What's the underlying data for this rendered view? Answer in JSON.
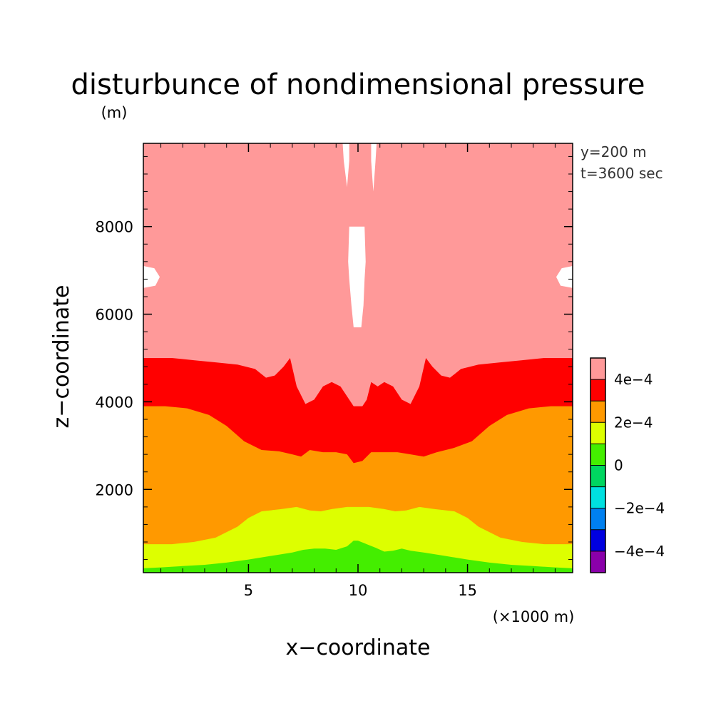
{
  "chart_data": {
    "type": "heatmap",
    "title": "disturbunce of nondimensional pressure",
    "xlabel": "x−coordinate",
    "ylabel": "z−coordinate",
    "x_unit": "(×1000 m)",
    "y_unit": "(m)",
    "annotations": [
      "y=200 m",
      "t=3600 sec"
    ],
    "xlim": [
      0.2,
      19.8
    ],
    "ylim": [
      100,
      9900
    ],
    "x_ticks": [
      5,
      10,
      15
    ],
    "x_tick_labels": [
      "5",
      "10",
      "15"
    ],
    "y_ticks": [
      2000,
      4000,
      6000,
      8000
    ],
    "y_tick_labels": [
      "2000",
      "4000",
      "6000",
      "8000"
    ],
    "x_minor_step": 1,
    "y_minor_step": 400,
    "grid": false,
    "legend": "colorbar-right",
    "colorbar": {
      "levels": [
        -0.0005,
        -0.0004,
        -0.0003,
        -0.0002,
        -0.0001,
        0,
        0.0001,
        0.0002,
        0.0003,
        0.0004,
        0.0005
      ],
      "colors": [
        "#8a00aa",
        "#0000e0",
        "#0080f0",
        "#00e0e0",
        "#00d660",
        "#44ee00",
        "#ddff00",
        "#ff9900",
        "#ff0000",
        "#ff9999"
      ],
      "tick_labels": [
        "−4e−4",
        "−2e−4",
        "0",
        "2e−4",
        "4e−4"
      ],
      "tick_values": [
        -0.0004,
        -0.0002,
        0,
        0.0002,
        0.0004
      ]
    },
    "contour_bands": [
      {
        "name": "0 to 1e-4",
        "color": "#44ee00",
        "upper_boundary": [
          [
            0.2,
            200
          ],
          [
            1,
            220
          ],
          [
            2,
            250
          ],
          [
            3,
            280
          ],
          [
            4,
            330
          ],
          [
            5,
            400
          ],
          [
            6,
            480
          ],
          [
            7,
            560
          ],
          [
            7.5,
            620
          ],
          [
            8,
            650
          ],
          [
            8.5,
            650
          ],
          [
            9,
            620
          ],
          [
            9.5,
            700
          ],
          [
            9.8,
            830
          ],
          [
            10,
            830
          ],
          [
            10.4,
            750
          ],
          [
            10.8,
            670
          ],
          [
            11.2,
            580
          ],
          [
            11.6,
            600
          ],
          [
            12,
            650
          ],
          [
            12.4,
            600
          ],
          [
            13,
            560
          ],
          [
            14,
            480
          ],
          [
            15,
            400
          ],
          [
            16,
            330
          ],
          [
            17,
            280
          ],
          [
            18,
            250
          ],
          [
            19,
            220
          ],
          [
            19.8,
            200
          ]
        ]
      },
      {
        "name": "1e-4 to 2e-4",
        "color": "#ddff00",
        "upper_boundary": [
          [
            0.2,
            750
          ],
          [
            1.5,
            750
          ],
          [
            2.5,
            800
          ],
          [
            3.5,
            900
          ],
          [
            4.5,
            1150
          ],
          [
            5,
            1350
          ],
          [
            5.6,
            1500
          ],
          [
            6.5,
            1550
          ],
          [
            7.2,
            1600
          ],
          [
            7.8,
            1520
          ],
          [
            8.3,
            1500
          ],
          [
            8.8,
            1550
          ],
          [
            9.5,
            1600
          ],
          [
            10.5,
            1600
          ],
          [
            11.2,
            1550
          ],
          [
            11.7,
            1500
          ],
          [
            12.2,
            1520
          ],
          [
            12.8,
            1600
          ],
          [
            13.5,
            1550
          ],
          [
            14.4,
            1500
          ],
          [
            15,
            1350
          ],
          [
            15.5,
            1150
          ],
          [
            16.5,
            900
          ],
          [
            17.5,
            800
          ],
          [
            18.5,
            750
          ],
          [
            19.8,
            750
          ]
        ]
      },
      {
        "name": "2e-4 to 3e-4",
        "color": "#ff9900",
        "upper_boundary": [
          [
            0.2,
            3900
          ],
          [
            1.2,
            3900
          ],
          [
            2.2,
            3850
          ],
          [
            3.2,
            3700
          ],
          [
            4,
            3450
          ],
          [
            4.8,
            3100
          ],
          [
            5.6,
            2900
          ],
          [
            6.4,
            2870
          ],
          [
            7,
            2800
          ],
          [
            7.4,
            2750
          ],
          [
            7.8,
            2900
          ],
          [
            8.4,
            2850
          ],
          [
            9,
            2850
          ],
          [
            9.5,
            2800
          ],
          [
            9.8,
            2600
          ],
          [
            10.2,
            2650
          ],
          [
            10.6,
            2850
          ],
          [
            11.2,
            2850
          ],
          [
            11.8,
            2850
          ],
          [
            12.4,
            2800
          ],
          [
            13.0,
            2750
          ],
          [
            13.6,
            2850
          ],
          [
            14.4,
            2950
          ],
          [
            15.2,
            3100
          ],
          [
            16,
            3450
          ],
          [
            16.8,
            3700
          ],
          [
            17.8,
            3850
          ],
          [
            18.8,
            3900
          ],
          [
            19.8,
            3900
          ]
        ]
      },
      {
        "name": "3e-4 to 4e-4",
        "color": "#ff0000",
        "upper_boundary": [
          [
            0.2,
            5000
          ],
          [
            1.5,
            5000
          ],
          [
            2.5,
            4950
          ],
          [
            3.5,
            4900
          ],
          [
            4.5,
            4850
          ],
          [
            5.3,
            4750
          ],
          [
            5.8,
            4550
          ],
          [
            6.2,
            4600
          ],
          [
            6.6,
            4800
          ],
          [
            6.9,
            5000
          ],
          [
            7.2,
            4350
          ],
          [
            7.6,
            3950
          ],
          [
            8,
            4050
          ],
          [
            8.4,
            4350
          ],
          [
            8.8,
            4450
          ],
          [
            9.2,
            4350
          ],
          [
            9.6,
            4050
          ],
          [
            9.8,
            3900
          ],
          [
            10.2,
            3900
          ],
          [
            10.4,
            4050
          ],
          [
            10.6,
            4450
          ],
          [
            10.9,
            4350
          ],
          [
            11.2,
            4450
          ],
          [
            11.6,
            4350
          ],
          [
            12,
            4050
          ],
          [
            12.4,
            3950
          ],
          [
            12.8,
            4350
          ],
          [
            13.1,
            5000
          ],
          [
            13.4,
            4800
          ],
          [
            13.8,
            4600
          ],
          [
            14.2,
            4550
          ],
          [
            14.7,
            4750
          ],
          [
            15.5,
            4850
          ],
          [
            16.5,
            4900
          ],
          [
            17.5,
            4950
          ],
          [
            18.5,
            5000
          ],
          [
            19.8,
            5000
          ]
        ]
      },
      {
        "name": "4e-4 to 5e-4",
        "color": "#ff9999",
        "upper_boundary": [
          [
            0.2,
            9900
          ],
          [
            19.8,
            9900
          ]
        ]
      }
    ],
    "regions_above_5e-4": [
      {
        "color": "#ffffff",
        "outline": [
          [
            9.3,
            9900
          ],
          [
            9.6,
            9900
          ],
          [
            9.6,
            9500
          ],
          [
            9.5,
            8900
          ],
          [
            9.35,
            9500
          ]
        ]
      },
      {
        "color": "#ffffff",
        "outline": [
          [
            10.6,
            9900
          ],
          [
            10.85,
            9900
          ],
          [
            10.8,
            9500
          ],
          [
            10.7,
            8800
          ],
          [
            10.6,
            9500
          ]
        ]
      },
      {
        "color": "#ffffff",
        "outline": [
          [
            9.6,
            8000
          ],
          [
            10.3,
            8000
          ],
          [
            10.35,
            7200
          ],
          [
            10.3,
            6800
          ],
          [
            10.25,
            6200
          ],
          [
            10.15,
            5700
          ],
          [
            9.8,
            5700
          ],
          [
            9.7,
            6200
          ],
          [
            9.6,
            6800
          ],
          [
            9.55,
            7200
          ]
        ]
      },
      {
        "color": "#ffffff",
        "outline": [
          [
            0.2,
            7100
          ],
          [
            0.7,
            7050
          ],
          [
            0.95,
            6850
          ],
          [
            0.75,
            6650
          ],
          [
            0.2,
            6600
          ]
        ]
      },
      {
        "color": "#ffffff",
        "outline": [
          [
            19.8,
            7100
          ],
          [
            19.3,
            7050
          ],
          [
            19.05,
            6850
          ],
          [
            19.25,
            6650
          ],
          [
            19.8,
            6600
          ]
        ]
      }
    ]
  }
}
